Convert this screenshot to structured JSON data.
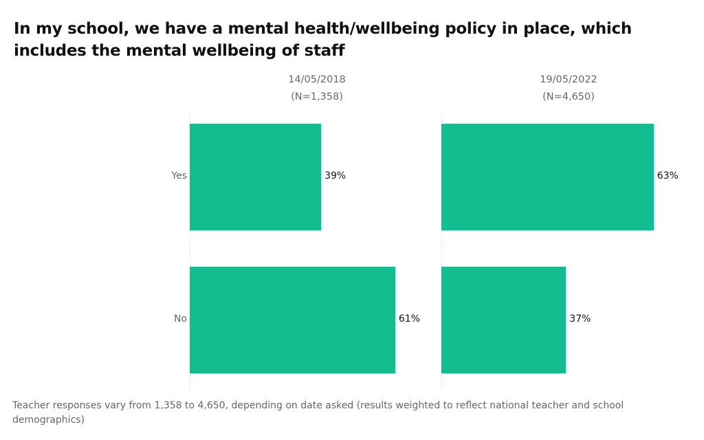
{
  "chart_data": {
    "type": "bar",
    "orientation": "horizontal",
    "title": "In my school, we have a mental health/wellbeing policy in place, which includes the mental wellbeing of staff",
    "categories": [
      "Yes",
      "No"
    ],
    "bar_color": "#13bd90",
    "unit": "%",
    "panels": [
      {
        "date": "14/05/2018",
        "n": "(N=1,358)",
        "values": [
          39,
          61
        ],
        "labels": [
          "39%",
          "61%"
        ]
      },
      {
        "date": "19/05/2022",
        "n": "(N=4,650)",
        "values": [
          63,
          37
        ],
        "labels": [
          "63%",
          "37%"
        ]
      }
    ],
    "grid": false,
    "footnote": "Teacher responses vary from 1,358 to 4,650, depending on date asked (results weighted to reflect national teacher and school demographics)"
  }
}
